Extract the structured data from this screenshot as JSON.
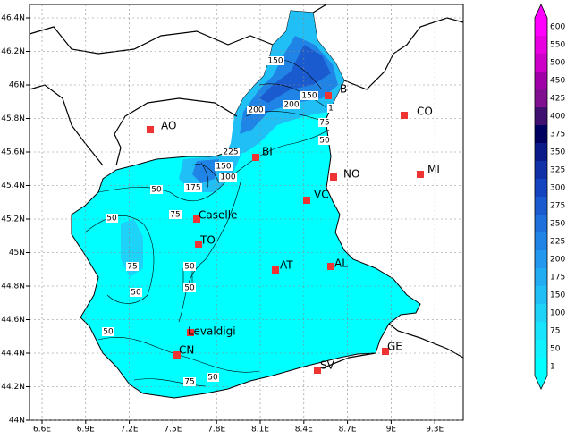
{
  "map": {
    "lon_ticks": [
      {
        "value": 6.6,
        "label": "6.6E"
      },
      {
        "value": 6.9,
        "label": "6.9E"
      },
      {
        "value": 7.2,
        "label": "7.2E"
      },
      {
        "value": 7.5,
        "label": "7.5E"
      },
      {
        "value": 7.8,
        "label": "7.8E"
      },
      {
        "value": 8.1,
        "label": "8.1E"
      },
      {
        "value": 8.4,
        "label": "8.4E"
      },
      {
        "value": 8.7,
        "label": "8.7E"
      },
      {
        "value": 9,
        "label": "9E"
      },
      {
        "value": 9.3,
        "label": "9.3E"
      }
    ],
    "lat_ticks": [
      {
        "value": 46.4,
        "label": "46.4N"
      },
      {
        "value": 46.2,
        "label": "46.2N"
      },
      {
        "value": 46,
        "label": "46N"
      },
      {
        "value": 45.8,
        "label": "45.8N"
      },
      {
        "value": 45.6,
        "label": "45.6N"
      },
      {
        "value": 45.4,
        "label": "45.4N"
      },
      {
        "value": 45.2,
        "label": "45.2N"
      },
      {
        "value": 45,
        "label": "45N"
      },
      {
        "value": 44.8,
        "label": "44.8N"
      },
      {
        "value": 44.6,
        "label": "44.6N"
      },
      {
        "value": 44.4,
        "label": "44.4N"
      },
      {
        "value": 44.2,
        "label": "44.2N"
      },
      {
        "value": 44,
        "label": "44N"
      }
    ],
    "cities": [
      "AO",
      "CO",
      "B",
      "BI",
      "NO",
      "MI",
      "VC",
      "Caselle",
      "TO",
      "AT",
      "AL",
      "Levaldigi",
      "CN",
      "GE",
      "SV"
    ],
    "contour_labels": [
      "150",
      "150",
      "200",
      "200",
      "1",
      "75",
      "50",
      "225",
      "150",
      "100",
      "175",
      "50",
      "75",
      "50",
      "75",
      "50",
      "50",
      "50",
      "50",
      "75",
      "50"
    ],
    "colorbar": {
      "levels": [
        600,
        550,
        500,
        450,
        425,
        400,
        375,
        350,
        325,
        300,
        275,
        250,
        225,
        200,
        175,
        150,
        100,
        75,
        50,
        1
      ],
      "colors": [
        "#ff00ff",
        "#e800e0",
        "#cc00c8",
        "#a000a8",
        "#801090",
        "#401070",
        "#000060",
        "#0a1a88",
        "#1030a8",
        "#1444c0",
        "#1a5cd0",
        "#1e70dc",
        "#2084e6",
        "#2298ee",
        "#22acf2",
        "#20c0f6",
        "#1ed2f8",
        "#18e4fb",
        "#10f2fd",
        "#00ffff"
      ]
    }
  }
}
